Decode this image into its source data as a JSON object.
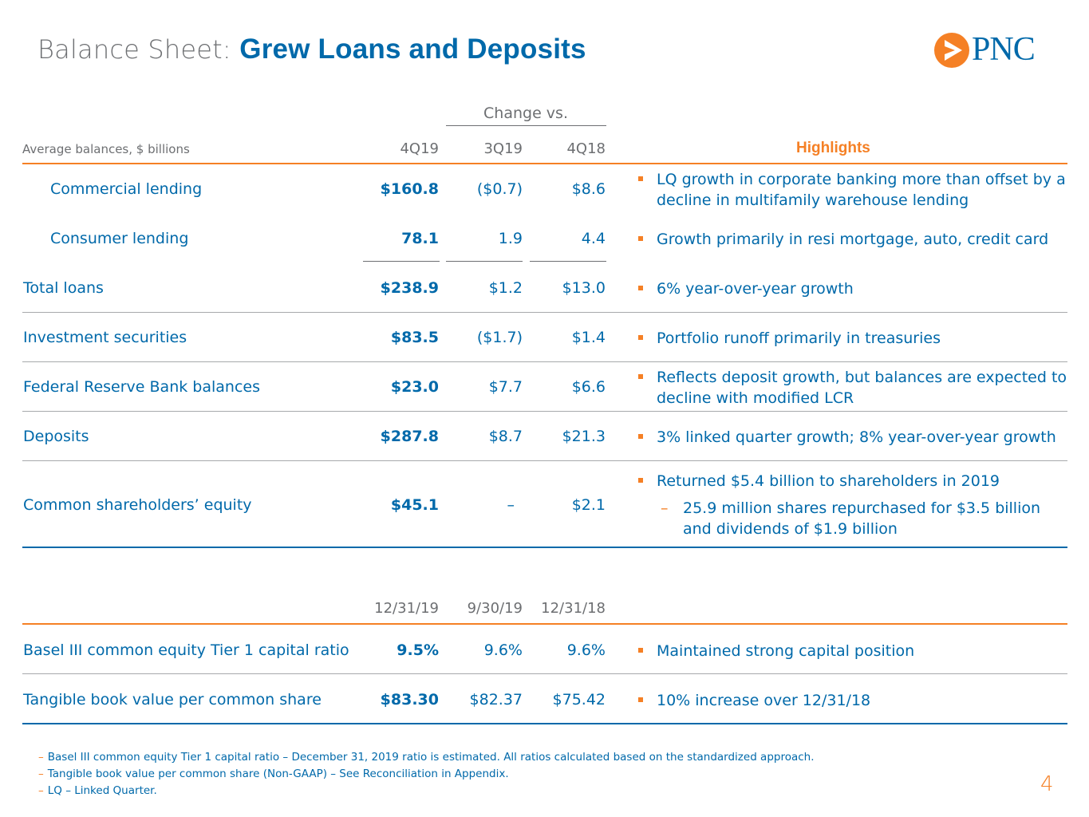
{
  "title": {
    "prefix": "Balance Sheet:",
    "main": "Grew Loans and Deposits"
  },
  "logo": {
    "text": "PNC",
    "registered": "®"
  },
  "colors": {
    "brand_blue": "#0069aa",
    "brand_orange": "#f58025",
    "gray": "#6d6f72"
  },
  "table1": {
    "change_header": "Change vs.",
    "unit_label": "Average balances, $ billions",
    "columns": [
      "4Q19",
      "3Q19",
      "4Q18"
    ],
    "highlights_header": "Highlights",
    "rows": [
      {
        "label": "Commercial lending",
        "current": "$160.8",
        "c1": "($0.7)",
        "c2": "$8.6",
        "highlight": "LQ growth in corporate banking more than offset by a decline in multifamily warehouse lending"
      },
      {
        "label": "Consumer lending",
        "current": "78.1",
        "c1": "1.9",
        "c2": "4.4",
        "highlight": "Growth primarily in resi mortgage, auto, credit card"
      },
      {
        "label": "Total loans",
        "current": "$238.9",
        "c1": "$1.2",
        "c2": "$13.0",
        "highlight": "6% year-over-year growth"
      },
      {
        "label": "Investment securities",
        "current": "$83.5",
        "c1": "($1.7)",
        "c2": "$1.4",
        "highlight": "Portfolio runoff primarily in treasuries"
      },
      {
        "label": "Federal Reserve Bank balances",
        "current": "$23.0",
        "c1": "$7.7",
        "c2": "$6.6",
        "highlight": "Reflects deposit growth, but balances are expected to decline with modified LCR"
      },
      {
        "label": "Deposits",
        "current": "$287.8",
        "c1": "$8.7",
        "c2": "$21.3",
        "highlight": "3% linked quarter growth; 8% year-over-year growth"
      },
      {
        "label": "Common shareholders’ equity",
        "current": "$45.1",
        "c1": "–",
        "c2": "$2.1",
        "highlight": "Returned $5.4 billion to shareholders in 2019",
        "sub_highlight": "25.9 million shares repurchased for $3.5 billion and dividends of $1.9 billion"
      }
    ]
  },
  "table2": {
    "columns": [
      "12/31/19",
      "9/30/19",
      "12/31/18"
    ],
    "rows": [
      {
        "label": "Basel III common equity Tier 1 capital ratio",
        "current": "9.5%",
        "c1": "9.6%",
        "c2": "9.6%",
        "highlight": "Maintained strong capital position"
      },
      {
        "label": "Tangible book value per common share",
        "current": "$83.30",
        "c1": "$82.37",
        "c2": "$75.42",
        "highlight": "10% increase over 12/31/18"
      }
    ]
  },
  "footnotes": [
    "Basel III common equity Tier 1 capital ratio – December 31, 2019 ratio is estimated.  All ratios calculated based on the standardized approach.",
    "Tangible book value per common share (Non-GAAP) – See Reconciliation in Appendix.",
    "LQ – Linked Quarter."
  ],
  "footnote_dash": "–",
  "sub_dash": "–",
  "page_number": "4"
}
